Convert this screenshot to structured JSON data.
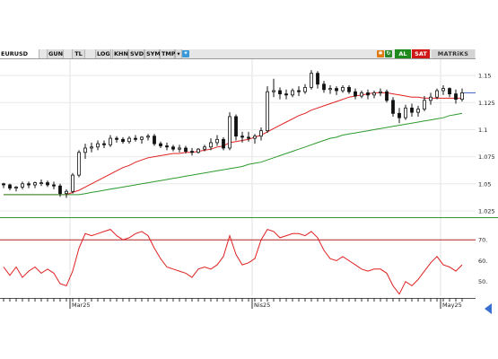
{
  "toolbar": {
    "symbol": "EURUSD",
    "buttons": [
      "GUN",
      "TL",
      "LOG",
      "KHN",
      "SVD",
      "SYM",
      "TMP"
    ],
    "al_label": "AL",
    "sat_label": "SAT",
    "brand": "MATRiKS",
    "colors": {
      "al": "#1e8a1e",
      "sat": "#d01818",
      "brand_bg": "#d4d4d4"
    }
  },
  "chart_data": [
    {
      "type": "candlestick",
      "title": "",
      "ylim": [
        1.02,
        1.165
      ],
      "y_ticks": [
        "1.15",
        "1.125",
        "1.1",
        "1.075",
        "1.05",
        "1.025"
      ],
      "y_tick_values": [
        1.15,
        1.125,
        1.1,
        1.075,
        1.05,
        1.025
      ],
      "x_labels": [
        "Mar25",
        "Nis25",
        "May25"
      ],
      "x_label_index": [
        11,
        40,
        70
      ],
      "grid": true,
      "ohlc": [
        [
          1.05,
          1.051,
          1.046,
          1.049
        ],
        [
          1.049,
          1.05,
          1.044,
          1.046
        ],
        [
          1.046,
          1.048,
          1.043,
          1.047
        ],
        [
          1.047,
          1.052,
          1.045,
          1.05
        ],
        [
          1.05,
          1.052,
          1.046,
          1.049
        ],
        [
          1.049,
          1.052,
          1.046,
          1.051
        ],
        [
          1.051,
          1.054,
          1.048,
          1.051
        ],
        [
          1.051,
          1.053,
          1.047,
          1.049
        ],
        [
          1.049,
          1.052,
          1.045,
          1.048
        ],
        [
          1.048,
          1.05,
          1.038,
          1.041
        ],
        [
          1.041,
          1.045,
          1.037,
          1.043
        ],
        [
          1.043,
          1.06,
          1.041,
          1.058
        ],
        [
          1.058,
          1.081,
          1.056,
          1.079
        ],
        [
          1.079,
          1.087,
          1.073,
          1.083
        ],
        [
          1.083,
          1.088,
          1.079,
          1.084
        ],
        [
          1.084,
          1.09,
          1.081,
          1.087
        ],
        [
          1.087,
          1.09,
          1.083,
          1.086
        ],
        [
          1.086,
          1.095,
          1.084,
          1.092
        ],
        [
          1.092,
          1.094,
          1.088,
          1.091
        ],
        [
          1.091,
          1.093,
          1.087,
          1.089
        ],
        [
          1.089,
          1.094,
          1.087,
          1.092
        ],
        [
          1.092,
          1.095,
          1.089,
          1.091
        ],
        [
          1.091,
          1.094,
          1.087,
          1.093
        ],
        [
          1.093,
          1.096,
          1.09,
          1.094
        ],
        [
          1.094,
          1.096,
          1.085,
          1.087
        ],
        [
          1.087,
          1.089,
          1.083,
          1.085
        ],
        [
          1.085,
          1.088,
          1.081,
          1.084
        ],
        [
          1.084,
          1.086,
          1.08,
          1.082
        ],
        [
          1.082,
          1.086,
          1.079,
          1.083
        ],
        [
          1.083,
          1.085,
          1.078,
          1.08
        ],
        [
          1.08,
          1.083,
          1.076,
          1.079
        ],
        [
          1.079,
          1.083,
          1.078,
          1.082
        ],
        [
          1.082,
          1.086,
          1.08,
          1.084
        ],
        [
          1.084,
          1.092,
          1.081,
          1.088
        ],
        [
          1.088,
          1.095,
          1.085,
          1.091
        ],
        [
          1.091,
          1.093,
          1.081,
          1.083
        ],
        [
          1.083,
          1.116,
          1.081,
          1.112
        ],
        [
          1.112,
          1.114,
          1.09,
          1.094
        ],
        [
          1.094,
          1.098,
          1.088,
          1.093
        ],
        [
          1.093,
          1.098,
          1.089,
          1.092
        ],
        [
          1.092,
          1.096,
          1.087,
          1.094
        ],
        [
          1.094,
          1.102,
          1.09,
          1.099
        ],
        [
          1.099,
          1.14,
          1.097,
          1.135
        ],
        [
          1.135,
          1.147,
          1.13,
          1.136
        ],
        [
          1.136,
          1.139,
          1.128,
          1.133
        ],
        [
          1.133,
          1.137,
          1.128,
          1.132
        ],
        [
          1.132,
          1.138,
          1.13,
          1.136
        ],
        [
          1.136,
          1.14,
          1.131,
          1.135
        ],
        [
          1.135,
          1.142,
          1.133,
          1.139
        ],
        [
          1.139,
          1.155,
          1.137,
          1.152
        ],
        [
          1.152,
          1.154,
          1.138,
          1.142
        ],
        [
          1.142,
          1.145,
          1.134,
          1.137
        ],
        [
          1.137,
          1.141,
          1.133,
          1.138
        ],
        [
          1.138,
          1.14,
          1.132,
          1.136
        ],
        [
          1.136,
          1.141,
          1.134,
          1.139
        ],
        [
          1.139,
          1.141,
          1.133,
          1.135
        ],
        [
          1.135,
          1.138,
          1.128,
          1.131
        ],
        [
          1.131,
          1.136,
          1.129,
          1.134
        ],
        [
          1.134,
          1.137,
          1.128,
          1.132
        ],
        [
          1.132,
          1.136,
          1.129,
          1.134
        ],
        [
          1.134,
          1.138,
          1.131,
          1.135
        ],
        [
          1.135,
          1.137,
          1.125,
          1.127
        ],
        [
          1.127,
          1.13,
          1.112,
          1.115
        ],
        [
          1.115,
          1.12,
          1.106,
          1.111
        ],
        [
          1.111,
          1.123,
          1.109,
          1.12
        ],
        [
          1.12,
          1.124,
          1.112,
          1.116
        ],
        [
          1.116,
          1.122,
          1.112,
          1.119
        ],
        [
          1.119,
          1.131,
          1.117,
          1.127
        ],
        [
          1.127,
          1.134,
          1.123,
          1.13
        ],
        [
          1.13,
          1.138,
          1.128,
          1.136
        ],
        [
          1.136,
          1.141,
          1.132,
          1.138
        ],
        [
          1.138,
          1.139,
          1.13,
          1.133
        ],
        [
          1.133,
          1.137,
          1.124,
          1.128
        ],
        [
          1.128,
          1.138,
          1.126,
          1.134
        ]
      ],
      "moving_averages": [
        {
          "color": "#e02020",
          "values": [
            1.04,
            1.04,
            1.04,
            1.04,
            1.04,
            1.04,
            1.04,
            1.04,
            1.04,
            1.04,
            1.04,
            1.042,
            1.044,
            1.047,
            1.05,
            1.053,
            1.056,
            1.059,
            1.062,
            1.065,
            1.067,
            1.07,
            1.072,
            1.074,
            1.075,
            1.076,
            1.077,
            1.078,
            1.078,
            1.079,
            1.079,
            1.08,
            1.081,
            1.082,
            1.084,
            1.085,
            1.088,
            1.089,
            1.09,
            1.091,
            1.093,
            1.095,
            1.098,
            1.101,
            1.104,
            1.107,
            1.11,
            1.113,
            1.115,
            1.118,
            1.12,
            1.122,
            1.124,
            1.126,
            1.128,
            1.13,
            1.131,
            1.132,
            1.133,
            1.134,
            1.134,
            1.134,
            1.133,
            1.132,
            1.131,
            1.13,
            1.13,
            1.129,
            1.129,
            1.129,
            1.129,
            1.129,
            1.129,
            1.129
          ]
        },
        {
          "color": "#2c9a2c",
          "values": [
            1.04,
            1.04,
            1.04,
            1.04,
            1.04,
            1.04,
            1.04,
            1.04,
            1.04,
            1.04,
            1.04,
            1.04,
            1.04,
            1.041,
            1.042,
            1.043,
            1.044,
            1.045,
            1.046,
            1.047,
            1.048,
            1.049,
            1.05,
            1.051,
            1.052,
            1.053,
            1.054,
            1.055,
            1.056,
            1.057,
            1.058,
            1.059,
            1.06,
            1.061,
            1.062,
            1.063,
            1.064,
            1.065,
            1.066,
            1.068,
            1.069,
            1.07,
            1.072,
            1.074,
            1.076,
            1.078,
            1.08,
            1.082,
            1.084,
            1.086,
            1.088,
            1.09,
            1.092,
            1.093,
            1.095,
            1.096,
            1.097,
            1.098,
            1.099,
            1.1,
            1.101,
            1.102,
            1.103,
            1.104,
            1.105,
            1.106,
            1.107,
            1.108,
            1.109,
            1.11,
            1.111,
            1.113,
            1.114,
            1.115
          ]
        }
      ]
    },
    {
      "type": "line",
      "title": "",
      "ylim": [
        43,
        80
      ],
      "y_ticks": [
        "70.",
        "60.",
        "50."
      ],
      "y_tick_values": [
        70,
        60,
        50
      ],
      "reference_line": 70,
      "reference_color": "#b02020",
      "series_color": "#e02020",
      "values": [
        57,
        53,
        57,
        52,
        55,
        57,
        54,
        56,
        54,
        49,
        48,
        55,
        66,
        73,
        72,
        73,
        74,
        75,
        72,
        70,
        71,
        73,
        74,
        72,
        66,
        61,
        57,
        56,
        55,
        54,
        52,
        56,
        57,
        56,
        58,
        62,
        72,
        63,
        58,
        59,
        61,
        70,
        75,
        74,
        71,
        72,
        73,
        73,
        72,
        74,
        71,
        65,
        61,
        60,
        62,
        60,
        58,
        56,
        55,
        56,
        56,
        54,
        48,
        44,
        50,
        48,
        51,
        55,
        59,
        62,
        58,
        57,
        55,
        58
      ]
    }
  ]
}
